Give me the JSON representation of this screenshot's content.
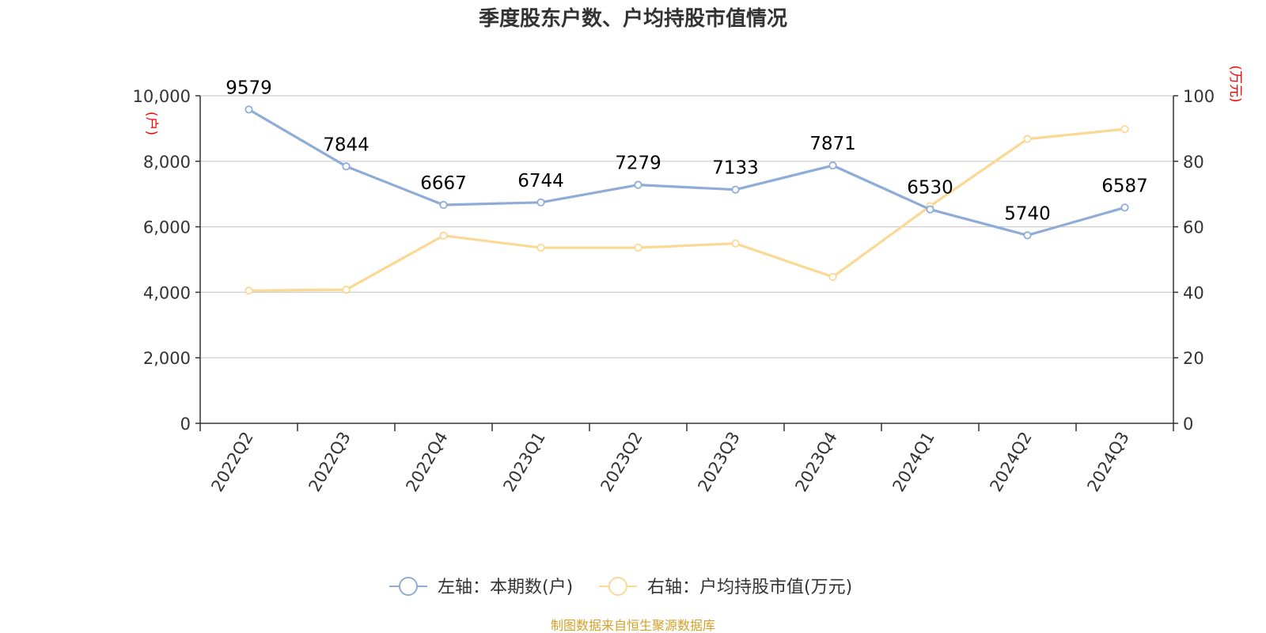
{
  "chart_data": {
    "type": "line",
    "title": "季度股东户数、户均持股市值情况",
    "categories": [
      "2022Q2",
      "2022Q3",
      "2022Q4",
      "2023Q1",
      "2023Q2",
      "2023Q3",
      "2023Q4",
      "2024Q1",
      "2024Q2",
      "2024Q3"
    ],
    "left_axis": {
      "unit": "(户)",
      "ylim": [
        0,
        10000
      ],
      "ticks": [
        "0",
        "2,000",
        "4,000",
        "6,000",
        "8,000",
        "10,000"
      ]
    },
    "right_axis": {
      "unit": "(万元)",
      "ylim": [
        0,
        100
      ],
      "ticks": [
        "0",
        "20",
        "40",
        "60",
        "80",
        "100"
      ]
    },
    "series": [
      {
        "name": "左轴：本期数(户)",
        "axis": "left",
        "color": "#8eacd8",
        "values": [
          9579,
          7844,
          6667,
          6744,
          7279,
          7133,
          7871,
          6530,
          5740,
          6587
        ],
        "labels": [
          "9579",
          "7844",
          "6667",
          "6744",
          "7279",
          "7133",
          "7871",
          "6530",
          "5740",
          "6587"
        ]
      },
      {
        "name": "右轴：户均持股市值(万元)",
        "axis": "right",
        "color": "#fbd894",
        "values": [
          40.5,
          40.8,
          57.3,
          53.6,
          53.6,
          54.9,
          44.7,
          66.3,
          86.8,
          89.8
        ]
      }
    ],
    "grid": true,
    "legend_position": "bottom-center"
  },
  "source": "制图数据来自恒生聚源数据库"
}
